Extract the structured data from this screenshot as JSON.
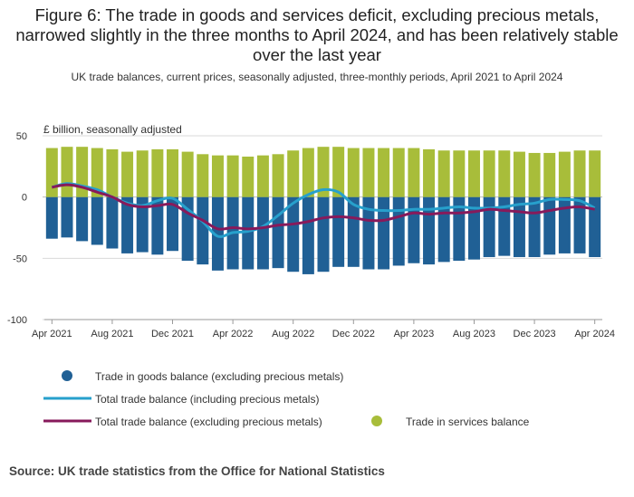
{
  "title": "Figure 6: The trade in goods and services deficit, excluding precious metals, narrowed slightly in the three months to April 2024, and has been relatively stable over the last year",
  "subtitle": "UK trade balances, current prices, seasonally adjusted, three-monthly periods, April 2021 to April 2024",
  "source": "Source: UK trade statistics from the Office for National Statistics",
  "colors": {
    "goods": "#206095",
    "services": "#a8bd3a",
    "total_incl": "#27a0cc",
    "total_excl": "#871a5b",
    "axis": "#999999",
    "grid": "#d9d9d9"
  },
  "chart_data": {
    "type": "bar",
    "title": "Figure 6: The trade in goods and services deficit, excluding precious metals, narrowed slightly in the three months to April 2024, and has been relatively stable over the last year",
    "ylabel": "£ billion, seasonally adjusted",
    "ylim": [
      -100,
      50
    ],
    "yticks": [
      50,
      0,
      -50,
      -100
    ],
    "legend_position": "bottom",
    "categories": [
      "Apr 2021",
      "May 2021",
      "Jun 2021",
      "Jul 2021",
      "Aug 2021",
      "Sep 2021",
      "Oct 2021",
      "Nov 2021",
      "Dec 2021",
      "Jan 2022",
      "Feb 2022",
      "Mar 2022",
      "Apr 2022",
      "May 2022",
      "Jun 2022",
      "Jul 2022",
      "Aug 2022",
      "Sep 2022",
      "Oct 2022",
      "Nov 2022",
      "Dec 2022",
      "Jan 2023",
      "Feb 2023",
      "Mar 2023",
      "Apr 2023",
      "May 2023",
      "Jun 2023",
      "Jul 2023",
      "Aug 2023",
      "Sep 2023",
      "Oct 2023",
      "Nov 2023",
      "Dec 2023",
      "Jan 2024",
      "Feb 2024",
      "Mar 2024",
      "Apr 2024"
    ],
    "xtick_labels": [
      "Apr 2021",
      "Aug 2021",
      "Dec 2021",
      "Apr 2022",
      "Aug 2022",
      "Dec 2022",
      "Apr 2023",
      "Aug 2023",
      "Dec 2023",
      "Apr 2024"
    ],
    "series": [
      {
        "name": "Trade in goods balance (excluding precious metals)",
        "kind": "bar",
        "values": [
          -34,
          -33,
          -36,
          -39,
          -42,
          -46,
          -45,
          -47,
          -44,
          -52,
          -55,
          -60,
          -59,
          -59,
          -59,
          -58,
          -61,
          -63,
          -61,
          -57,
          -57,
          -59,
          -59,
          -56,
          -54,
          -55,
          -53,
          -52,
          -51,
          -49,
          -48,
          -49,
          -49,
          -47,
          -46,
          -46,
          -49
        ]
      },
      {
        "name": "Trade in services balance",
        "kind": "bar",
        "values": [
          40,
          41,
          41,
          40,
          39,
          37,
          38,
          39,
          39,
          37,
          35,
          34,
          34,
          33,
          34,
          35,
          38,
          40,
          41,
          41,
          40,
          40,
          40,
          40,
          40,
          39,
          38,
          38,
          38,
          38,
          38,
          37,
          36,
          36,
          37,
          38,
          38
        ]
      },
      {
        "name": "Total trade balance (including precious metals)",
        "kind": "line",
        "values": [
          8,
          11,
          9,
          6,
          0,
          -5,
          -7,
          -3,
          -1,
          -10,
          -20,
          -32,
          -29,
          -28,
          -24,
          -15,
          -5,
          2,
          6,
          4,
          -6,
          -10,
          -11,
          -11,
          -10,
          -10,
          -9,
          -8,
          -9,
          -9,
          -8,
          -6,
          -5,
          -2,
          -2,
          -3,
          -9
        ]
      },
      {
        "name": "Total trade balance (excluding precious metals)",
        "kind": "line",
        "values": [
          8,
          10,
          8,
          4,
          0,
          -6,
          -8,
          -7,
          -6,
          -13,
          -19,
          -26,
          -25,
          -26,
          -25,
          -23,
          -22,
          -20,
          -17,
          -16,
          -17,
          -19,
          -19,
          -16,
          -13,
          -14,
          -13,
          -13,
          -12,
          -10,
          -11,
          -12,
          -13,
          -11,
          -9,
          -8,
          -10
        ]
      }
    ]
  },
  "legend": {
    "goods": "Trade in goods balance (excluding precious metals)",
    "total_incl": "Total trade balance (including precious metals)",
    "total_excl": "Total trade balance (excluding precious metals)",
    "services": "Trade in services balance"
  }
}
